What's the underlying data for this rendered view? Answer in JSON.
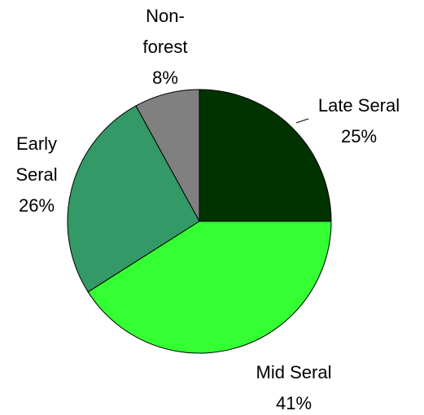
{
  "chart_data": {
    "type": "pie",
    "categories": [
      "Late Seral",
      "Mid Seral",
      "Early Seral",
      "Non-forest"
    ],
    "values": [
      25,
      41,
      26,
      8
    ],
    "value_labels": [
      "25%",
      "41%",
      "26%",
      "8%"
    ],
    "colors": [
      "#003300",
      "#33ff33",
      "#339966",
      "#808080"
    ]
  }
}
